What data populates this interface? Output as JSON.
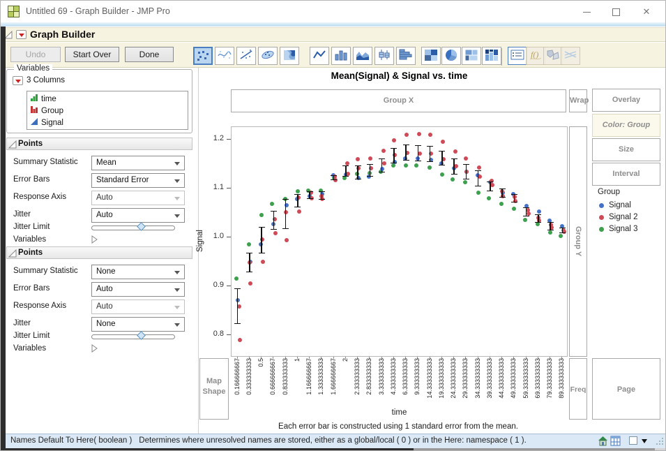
{
  "window": {
    "title": "Untitled 69 - Graph Builder - JMP Pro"
  },
  "outline": {
    "title": "Graph Builder"
  },
  "buttons": {
    "undo": "Undo",
    "start_over": "Start Over",
    "done": "Done"
  },
  "graph_types": [
    "points",
    "smoother",
    "line-of-fit",
    "ellipse",
    "contour",
    "line",
    "bar",
    "area",
    "box-plot",
    "histogram",
    "heatmap",
    "pie",
    "treemap",
    "mosaic",
    "caption-box",
    "formula",
    "map-shapes",
    "parallel"
  ],
  "graph_types_selected": "points",
  "variables": {
    "legend": "Variables",
    "group_label": "3 Columns",
    "columns": [
      {
        "name": "time",
        "icon": "ordinal-green-bars-icon"
      },
      {
        "name": "Group",
        "icon": "nominal-red-bars-icon"
      },
      {
        "name": "Signal",
        "icon": "continuous-blue-triangle-icon"
      }
    ]
  },
  "points_panels": [
    {
      "title": "Points",
      "summary_statistic_label": "Summary Statistic",
      "summary_statistic": "Mean",
      "error_bars_label": "Error Bars",
      "error_bars": "Standard Error",
      "response_axis_label": "Response Axis",
      "response_axis": "Auto",
      "response_axis_disabled": true,
      "jitter_label": "Jitter",
      "jitter": "Auto",
      "jitter_limit_label": "Jitter Limit",
      "variables_label": "Variables"
    },
    {
      "title": "Points",
      "summary_statistic_label": "Summary Statistic",
      "summary_statistic": "None",
      "error_bars_label": "Error Bars",
      "error_bars": "Auto",
      "response_axis_label": "Response Axis",
      "response_axis": "Auto",
      "response_axis_disabled": true,
      "jitter_label": "Jitter",
      "jitter": "None",
      "jitter_limit_label": "Jitter Limit",
      "variables_label": "Variables"
    }
  ],
  "zones": {
    "group_x": "Group X",
    "wrap": "Wrap",
    "overlay": "Overlay",
    "color_group": "Color: Group",
    "size": "Size",
    "interval": "Interval",
    "group_y": "Group Y",
    "map_shape": "Map Shape",
    "freq": "Freq",
    "page": "Page"
  },
  "legend": {
    "title": "Group",
    "items": [
      {
        "label": "Signal",
        "color": "#4472c8"
      },
      {
        "label": "Signal 2",
        "color": "#cf4a57"
      },
      {
        "label": "Signal 3",
        "color": "#3ca04c"
      }
    ]
  },
  "footnote": "Each error bar is constructed using 1 standard error from the mean.",
  "status_bar": {
    "code": "Names Default To Here( boolean )",
    "description": "Determines where unresolved names are stored, either as a global/local ( 0 ) or in the Here: namespace ( 1 )."
  },
  "chart_data": {
    "type": "scatter",
    "title": "Mean(Signal) & Signal vs. time",
    "xlabel": "time",
    "ylabel": "Signal",
    "grid": false,
    "legend_position": "right",
    "ylim": [
      0.754,
      1.226
    ],
    "yticks": [
      "0.8",
      "0.9",
      "1.0",
      "1.1",
      "1.2"
    ],
    "x_categories": [
      "0.166666667",
      "0.333333333",
      "0.5",
      "0.666666667",
      "0.833333333",
      "1",
      "1.166666667",
      "1.333333333",
      "1.666666667",
      "2",
      "2.333333333",
      "2.833333333",
      "3.333333333",
      "4.333333333",
      "6.333333333",
      "9.333333333",
      "14.333333333",
      "19.333333333",
      "24.333333333",
      "29.333333333",
      "34.333333333",
      "39.333333333",
      "44.333333333",
      "49.333333333",
      "59.333333333",
      "69.333333333",
      "79.333333333",
      "89.333333333"
    ],
    "series": [
      {
        "name": "Signal",
        "color": "#4472c8",
        "values": [
          0.872,
          0.95,
          0.986,
          1.027,
          1.066,
          1.079,
          1.085,
          1.089,
          1.127,
          1.129,
          1.121,
          1.124,
          1.14,
          1.154,
          1.162,
          1.161,
          1.159,
          1.151,
          1.142,
          1.134,
          1.127,
          1.113,
          1.091,
          1.088,
          1.064,
          1.053,
          1.035,
          1.023
        ]
      },
      {
        "name": "Signal 2",
        "color": "#cf4a57",
        "values": [
          [
            0.859,
            0.79
          ],
          [
            0.948,
            0.906
          ],
          [
            0.996,
            0.95
          ],
          [
            1.037,
            1.008
          ],
          [
            1.051,
            0.994
          ],
          [
            1.081,
            1.053
          ],
          [
            1.091,
            1.08
          ],
          [
            1.084,
            1.078
          ],
          [
            1.124,
            1.118
          ],
          [
            1.152,
            1.13
          ],
          [
            1.16,
            1.141
          ],
          [
            1.162,
            1.142
          ],
          [
            1.178,
            1.152
          ],
          [
            1.199,
            1.169
          ],
          [
            1.21,
            1.173
          ],
          [
            1.211,
            1.172
          ],
          [
            1.21,
            1.171
          ],
          [
            1.196,
            1.16
          ],
          [
            1.176,
            1.146
          ],
          [
            1.161,
            1.135
          ],
          [
            1.143,
            1.124
          ],
          [
            1.116,
            1.108
          ],
          [
            1.095,
            1.085
          ],
          [
            1.083,
            1.075
          ],
          [
            1.056,
            1.048
          ],
          [
            1.04,
            1.034
          ],
          [
            1.026,
            1.02
          ],
          [
            1.015,
            1.011
          ]
        ]
      },
      {
        "name": "Signal 3",
        "color": "#3ca04c",
        "values": [
          0.916,
          0.986,
          1.046,
          1.069,
          1.079,
          1.094,
          1.096,
          1.096,
          1.121,
          1.121,
          1.13,
          1.131,
          1.135,
          1.147,
          1.147,
          1.147,
          1.143,
          1.129,
          1.119,
          1.113,
          1.092,
          1.08,
          1.069,
          1.058,
          1.036,
          1.027,
          1.01,
          1.003
        ]
      }
    ],
    "error_bars": {
      "description": "mean ± 1 standard error",
      "ranges": [
        [
          0.822,
          0.895
        ],
        [
          0.928,
          0.968
        ],
        [
          0.967,
          1.022
        ],
        [
          1.016,
          1.054
        ],
        [
          1.017,
          1.078
        ],
        [
          1.061,
          1.089
        ],
        [
          1.078,
          1.095
        ],
        [
          1.077,
          1.094
        ],
        [
          1.117,
          1.128
        ],
        [
          1.124,
          1.148
        ],
        [
          1.118,
          1.147
        ],
        [
          1.124,
          1.15
        ],
        [
          1.133,
          1.161
        ],
        [
          1.152,
          1.183
        ],
        [
          1.157,
          1.19
        ],
        [
          1.156,
          1.189
        ],
        [
          1.154,
          1.188
        ],
        [
          1.148,
          1.178
        ],
        [
          1.129,
          1.161
        ],
        [
          1.119,
          1.15
        ],
        [
          1.105,
          1.138
        ],
        [
          1.095,
          1.115
        ],
        [
          1.081,
          1.1
        ],
        [
          1.071,
          1.089
        ],
        [
          1.043,
          1.061
        ],
        [
          1.03,
          1.047
        ],
        [
          1.015,
          1.031
        ],
        [
          1.008,
          1.02
        ]
      ]
    }
  }
}
